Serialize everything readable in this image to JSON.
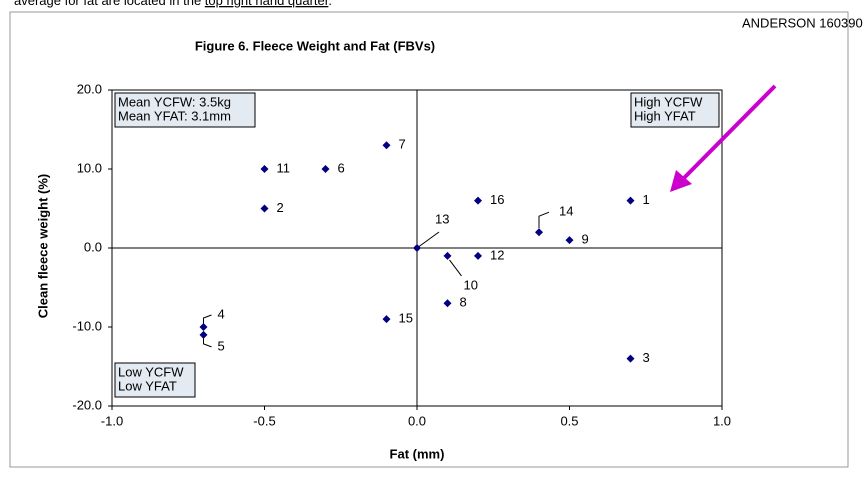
{
  "header_text": {
    "before": "average for fat are located in the ",
    "underlined": "top right hand quarter",
    "after": "."
  },
  "chart_data": {
    "type": "scatter",
    "title": "Figure 6.  Fleece Weight and Fat (FBVs)",
    "x_label": "Fat (mm)",
    "y_label": "Clean fleece weight (%)",
    "xlim": [
      -1,
      1
    ],
    "ylim": [
      -20,
      20
    ],
    "xticks": [
      {
        "value": -1,
        "label": "-1.0"
      },
      {
        "value": -0.5,
        "label": "-0.5"
      },
      {
        "value": 0,
        "label": "0.0"
      },
      {
        "value": 0.5,
        "label": "0.5"
      },
      {
        "value": 1,
        "label": "1.0"
      }
    ],
    "yticks": [
      {
        "value": 20,
        "label": "20.0"
      },
      {
        "value": 10,
        "label": "10.0"
      },
      {
        "value": 0,
        "label": "0.0"
      },
      {
        "value": -10,
        "label": "-10.0"
      },
      {
        "value": -20,
        "label": "-20.0"
      }
    ],
    "grid": false,
    "series": [
      {
        "color": "#000080",
        "labels": [
          "1",
          "2",
          "3",
          "4",
          "5",
          "6",
          "7",
          "8",
          "9",
          "10",
          "11",
          "12",
          "13",
          "14",
          "15",
          "16"
        ],
        "x": [
          0.7,
          -0.5,
          0.7,
          -0.7,
          -0.7,
          -0.3,
          -0.1,
          0.1,
          0.5,
          0.1,
          -0.5,
          0.2,
          0,
          0.4,
          -0.1,
          0.2
        ],
        "values": [
          6,
          5,
          -14,
          -10,
          -11,
          10,
          13,
          -7,
          1,
          -1,
          10,
          -1,
          0,
          2,
          -9,
          6
        ]
      }
    ],
    "quadrant_notes": {
      "top_left": [
        "Mean YCFW: 3.5kg",
        "Mean YFAT: 3.1mm"
      ],
      "top_right": [
        "High YCFW",
        "High YFAT"
      ],
      "bottom_left": [
        "Low YCFW",
        "Low YFAT"
      ]
    },
    "annotation": {
      "text": "ANDERSON 160390",
      "color": "#cc00cc"
    }
  }
}
